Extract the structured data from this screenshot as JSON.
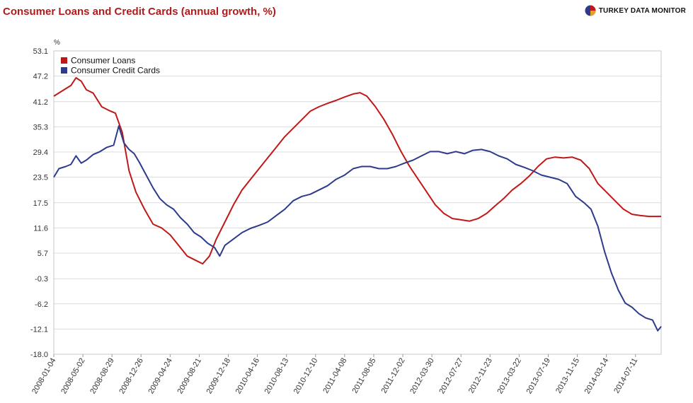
{
  "page": {
    "title": "Consumer Loans and Credit Cards (annual growth, %)",
    "brand": "TURKEY DATA MONITOR",
    "brand_icon": "pie-logo-icon"
  },
  "chart_data": {
    "type": "line",
    "unit_label": "%",
    "y_ticks": [
      "53.1",
      "47.2",
      "41.2",
      "35.3",
      "29.4",
      "23.5",
      "17.5",
      "11.6",
      "5.7",
      "-0.3",
      "-6.2",
      "-12.1",
      "-18.0"
    ],
    "ylim": [
      -18.0,
      53.1
    ],
    "grid": true,
    "legend_placement": "top-left",
    "x_ticks": [
      "2008-01-04",
      "2008-05-02",
      "2008-08-29",
      "2008-12-26",
      "2009-04-24",
      "2009-08-21",
      "2009-12-18",
      "2010-04-16",
      "2010-08-13",
      "2010-12-10",
      "2011-04-08",
      "2011-08-05",
      "2011-12-02",
      "2012-03-30",
      "2012-07-27",
      "2012-11-23",
      "2013-03-22",
      "2013-07-19",
      "2013-11-15",
      "2014-03-14",
      "2014-07-11"
    ],
    "x_range": [
      "2008-01-04",
      "2014-10-24"
    ],
    "series": [
      {
        "name": "Consumer Loans",
        "color": "#c01818",
        "points": [
          [
            "2008-01-04",
            42.5
          ],
          [
            "2008-02-15",
            44.0
          ],
          [
            "2008-03-14",
            45.0
          ],
          [
            "2008-04-04",
            46.8
          ],
          [
            "2008-04-25",
            46.0
          ],
          [
            "2008-05-16",
            44.0
          ],
          [
            "2008-06-13",
            43.2
          ],
          [
            "2008-07-18",
            40.0
          ],
          [
            "2008-08-15",
            39.2
          ],
          [
            "2008-09-12",
            38.5
          ],
          [
            "2008-10-10",
            34.0
          ],
          [
            "2008-11-07",
            25.0
          ],
          [
            "2008-12-05",
            20.0
          ],
          [
            "2009-01-09",
            16.0
          ],
          [
            "2009-02-13",
            12.5
          ],
          [
            "2009-03-20",
            11.6
          ],
          [
            "2009-04-24",
            10.0
          ],
          [
            "2009-05-29",
            7.5
          ],
          [
            "2009-07-03",
            5.0
          ],
          [
            "2009-08-07",
            4.0
          ],
          [
            "2009-09-04",
            3.2
          ],
          [
            "2009-10-02",
            5.0
          ],
          [
            "2009-10-30",
            9.0
          ],
          [
            "2009-12-04",
            13.0
          ],
          [
            "2010-01-08",
            17.0
          ],
          [
            "2010-02-12",
            20.5
          ],
          [
            "2010-03-19",
            23.0
          ],
          [
            "2010-04-23",
            25.5
          ],
          [
            "2010-05-28",
            28.0
          ],
          [
            "2010-07-02",
            30.5
          ],
          [
            "2010-08-06",
            33.0
          ],
          [
            "2010-09-10",
            35.0
          ],
          [
            "2010-10-15",
            37.0
          ],
          [
            "2010-11-19",
            39.0
          ],
          [
            "2010-12-24",
            40.0
          ],
          [
            "2011-01-28",
            40.8
          ],
          [
            "2011-03-04",
            41.5
          ],
          [
            "2011-04-08",
            42.3
          ],
          [
            "2011-05-13",
            43.0
          ],
          [
            "2011-06-10",
            43.3
          ],
          [
            "2011-07-08",
            42.5
          ],
          [
            "2011-08-12",
            40.0
          ],
          [
            "2011-09-16",
            37.0
          ],
          [
            "2011-10-21",
            33.5
          ],
          [
            "2011-11-25",
            29.5
          ],
          [
            "2011-12-30",
            26.0
          ],
          [
            "2012-02-03",
            23.0
          ],
          [
            "2012-03-09",
            20.0
          ],
          [
            "2012-04-13",
            17.0
          ],
          [
            "2012-05-18",
            15.0
          ],
          [
            "2012-06-22",
            13.8
          ],
          [
            "2012-07-27",
            13.5
          ],
          [
            "2012-08-31",
            13.2
          ],
          [
            "2012-10-05",
            13.8
          ],
          [
            "2012-11-09",
            15.0
          ],
          [
            "2012-12-14",
            16.8
          ],
          [
            "2013-01-18",
            18.5
          ],
          [
            "2013-02-22",
            20.5
          ],
          [
            "2013-03-29",
            22.0
          ],
          [
            "2013-05-03",
            23.8
          ],
          [
            "2013-06-07",
            26.0
          ],
          [
            "2013-07-12",
            27.8
          ],
          [
            "2013-08-16",
            28.2
          ],
          [
            "2013-09-20",
            28.0
          ],
          [
            "2013-10-25",
            28.2
          ],
          [
            "2013-11-29",
            27.5
          ],
          [
            "2014-01-03",
            25.5
          ],
          [
            "2014-02-07",
            22.0
          ],
          [
            "2014-03-14",
            20.0
          ],
          [
            "2014-04-18",
            18.0
          ],
          [
            "2014-05-23",
            16.0
          ],
          [
            "2014-06-27",
            14.8
          ],
          [
            "2014-08-01",
            14.5
          ],
          [
            "2014-09-05",
            14.3
          ],
          [
            "2014-10-24",
            14.3
          ]
        ]
      },
      {
        "name": "Consumer Credit Cards",
        "color": "#2e3a8c",
        "points": [
          [
            "2008-01-04",
            23.5
          ],
          [
            "2008-01-25",
            25.5
          ],
          [
            "2008-02-22",
            26.0
          ],
          [
            "2008-03-14",
            26.5
          ],
          [
            "2008-04-04",
            28.5
          ],
          [
            "2008-04-25",
            26.8
          ],
          [
            "2008-05-16",
            27.5
          ],
          [
            "2008-06-13",
            28.8
          ],
          [
            "2008-07-11",
            29.5
          ],
          [
            "2008-08-08",
            30.5
          ],
          [
            "2008-09-05",
            31.0
          ],
          [
            "2008-09-26",
            35.5
          ],
          [
            "2008-10-17",
            31.5
          ],
          [
            "2008-11-07",
            30.0
          ],
          [
            "2008-11-28",
            29.0
          ],
          [
            "2008-12-19",
            27.0
          ],
          [
            "2009-01-16",
            24.0
          ],
          [
            "2009-02-13",
            21.0
          ],
          [
            "2009-03-13",
            18.5
          ],
          [
            "2009-04-10",
            17.0
          ],
          [
            "2009-05-08",
            16.0
          ],
          [
            "2009-06-05",
            14.0
          ],
          [
            "2009-07-03",
            12.5
          ],
          [
            "2009-07-31",
            10.5
          ],
          [
            "2009-08-28",
            9.5
          ],
          [
            "2009-09-25",
            8.0
          ],
          [
            "2009-10-23",
            7.0
          ],
          [
            "2009-11-13",
            5.0
          ],
          [
            "2009-12-04",
            7.5
          ],
          [
            "2010-01-08",
            9.0
          ],
          [
            "2010-02-12",
            10.5
          ],
          [
            "2010-03-19",
            11.5
          ],
          [
            "2010-04-23",
            12.2
          ],
          [
            "2010-05-28",
            13.0
          ],
          [
            "2010-07-02",
            14.5
          ],
          [
            "2010-08-06",
            16.0
          ],
          [
            "2010-09-10",
            18.0
          ],
          [
            "2010-10-15",
            19.0
          ],
          [
            "2010-11-19",
            19.5
          ],
          [
            "2010-12-24",
            20.5
          ],
          [
            "2011-01-28",
            21.5
          ],
          [
            "2011-03-04",
            23.0
          ],
          [
            "2011-04-08",
            24.0
          ],
          [
            "2011-05-13",
            25.5
          ],
          [
            "2011-06-17",
            26.0
          ],
          [
            "2011-07-22",
            26.0
          ],
          [
            "2011-08-26",
            25.5
          ],
          [
            "2011-09-30",
            25.5
          ],
          [
            "2011-11-04",
            26.0
          ],
          [
            "2011-12-09",
            26.8
          ],
          [
            "2012-01-13",
            27.5
          ],
          [
            "2012-02-17",
            28.5
          ],
          [
            "2012-03-23",
            29.5
          ],
          [
            "2012-04-27",
            29.5
          ],
          [
            "2012-06-01",
            29.0
          ],
          [
            "2012-07-06",
            29.5
          ],
          [
            "2012-08-10",
            29.0
          ],
          [
            "2012-09-14",
            29.8
          ],
          [
            "2012-10-19",
            30.0
          ],
          [
            "2012-11-23",
            29.5
          ],
          [
            "2012-12-28",
            28.5
          ],
          [
            "2013-02-01",
            27.8
          ],
          [
            "2013-03-08",
            26.5
          ],
          [
            "2013-04-12",
            25.8
          ],
          [
            "2013-05-17",
            25.0
          ],
          [
            "2013-06-21",
            24.0
          ],
          [
            "2013-07-26",
            23.5
          ],
          [
            "2013-08-30",
            23.0
          ],
          [
            "2013-10-04",
            22.0
          ],
          [
            "2013-11-08",
            19.0
          ],
          [
            "2013-12-13",
            17.5
          ],
          [
            "2014-01-10",
            16.0
          ],
          [
            "2014-02-07",
            12.0
          ],
          [
            "2014-03-07",
            6.0
          ],
          [
            "2014-04-04",
            1.0
          ],
          [
            "2014-05-02",
            -3.0
          ],
          [
            "2014-05-30",
            -6.0
          ],
          [
            "2014-06-27",
            -7.0
          ],
          [
            "2014-07-25",
            -8.5
          ],
          [
            "2014-08-22",
            -9.5
          ],
          [
            "2014-09-19",
            -10.0
          ],
          [
            "2014-10-10",
            -12.5
          ],
          [
            "2014-10-24",
            -11.5
          ]
        ]
      }
    ]
  }
}
